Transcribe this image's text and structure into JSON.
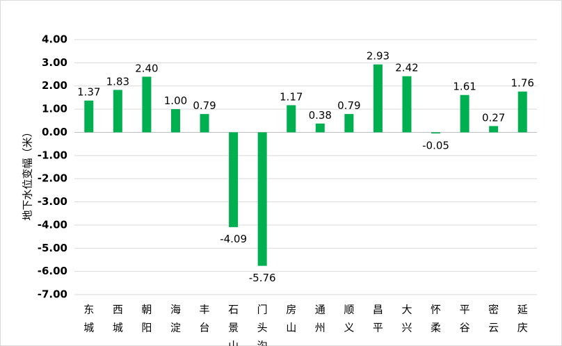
{
  "chart_data": {
    "type": "bar",
    "ylabel": "地下水位变幅（米）",
    "ylim": [
      -7,
      4
    ],
    "ytick_step": 1,
    "ytick_labels": [
      "4.00",
      "3.00",
      "2.00",
      "1.00",
      "0.00",
      "-1.00",
      "-2.00",
      "-3.00",
      "-4.00",
      "-5.00",
      "-6.00",
      "-7.00"
    ],
    "categories": [
      "东城",
      "西城",
      "朝阳",
      "海淀",
      "丰台",
      "石景山",
      "门头沟",
      "房山",
      "通州",
      "顺义",
      "昌平",
      "大兴",
      "怀柔",
      "平谷",
      "密云",
      "延庆"
    ],
    "values": [
      1.37,
      1.83,
      2.4,
      1.0,
      0.79,
      -4.09,
      -5.76,
      1.17,
      0.38,
      0.79,
      2.93,
      2.42,
      -0.05,
      1.61,
      0.27,
      1.76
    ],
    "data_labels": [
      "1.37",
      "1.83",
      "2.40",
      "1.00",
      "0.79",
      "-4.09",
      "-5.76",
      "1.17",
      "0.38",
      "0.79",
      "2.93",
      "2.42",
      "-0.05",
      "1.61",
      "0.27",
      "1.76"
    ],
    "colors": {
      "bar": "#00b050",
      "grid": "#d9d9d9",
      "axis": "#bfbfbf"
    },
    "grid": true,
    "legend": "none"
  }
}
